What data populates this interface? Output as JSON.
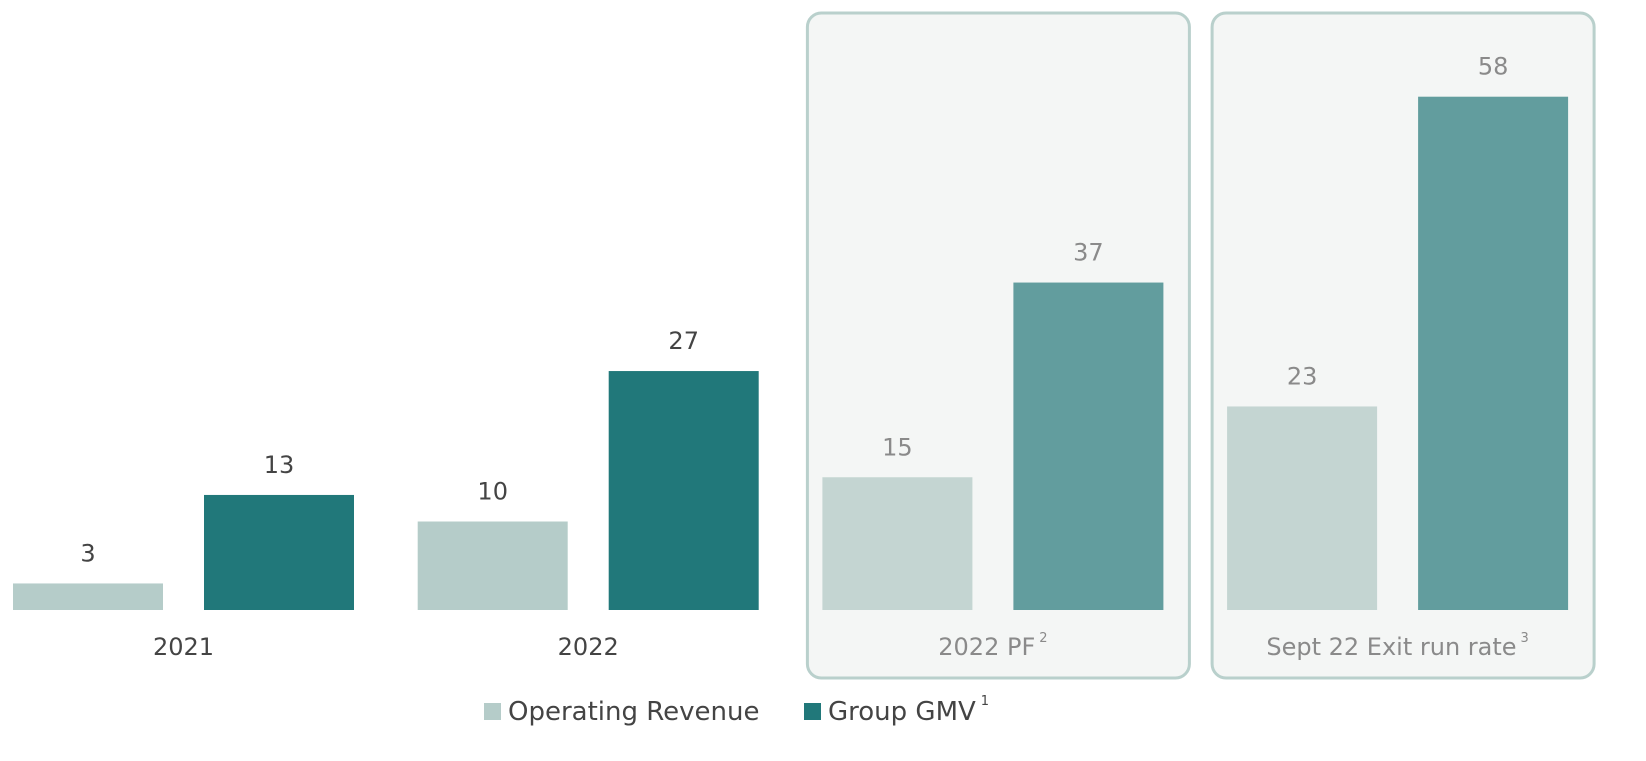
{
  "chart_data": {
    "type": "bar",
    "categories": [
      "2021",
      "2022",
      "2022 PF",
      "Sept 22 Exit run rate"
    ],
    "category_notes": [
      null,
      null,
      "2",
      "3"
    ],
    "highlighted": [
      false,
      false,
      true,
      true
    ],
    "series": [
      {
        "name": "Operating Revenue",
        "color": "#b5ccc9",
        "highlight_color": "#c4d5d2",
        "values": [
          3,
          10,
          15,
          23
        ]
      },
      {
        "name": "Group GMV",
        "note": "1",
        "color": "#21787a",
        "highlight_color": "#629d9e",
        "values": [
          13,
          27,
          37,
          58
        ]
      }
    ],
    "ylim": [
      0,
      60
    ]
  }
}
